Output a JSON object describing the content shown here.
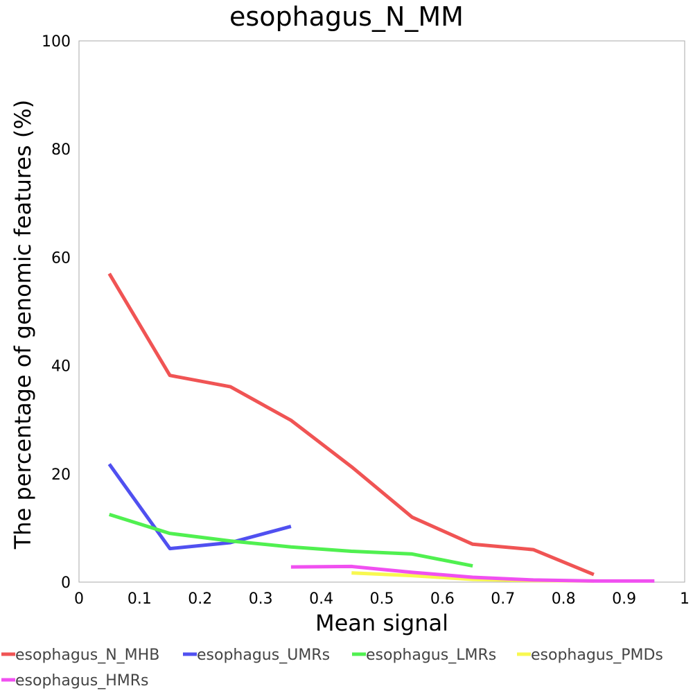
{
  "chart_data": {
    "type": "line",
    "title": "esophagus_N_MM",
    "xlabel": "Mean signal",
    "ylabel": "The percentage of genomic features (%)",
    "xlim": [
      0,
      1
    ],
    "ylim": [
      0,
      100
    ],
    "xticks": [
      "0",
      "0.1",
      "0.2",
      "0.3",
      "0.4",
      "0.5",
      "0.6",
      "0.7",
      "0.8",
      "0.9",
      "1"
    ],
    "yticks": [
      "0",
      "20",
      "40",
      "60",
      "80",
      "100"
    ],
    "grid": false,
    "legend_position": "bottom",
    "series": [
      {
        "name": "esophagus_N_MHB",
        "color": "#f05454",
        "x": [
          0.05,
          0.15,
          0.25,
          0.35,
          0.45,
          0.55,
          0.65,
          0.75,
          0.85
        ],
        "y": [
          57,
          38.2,
          36.1,
          29.9,
          21.3,
          12.0,
          7.0,
          6.0,
          1.4
        ]
      },
      {
        "name": "esophagus_UMRs",
        "color": "#5050f0",
        "x": [
          0.05,
          0.15,
          0.25,
          0.35
        ],
        "y": [
          21.8,
          6.2,
          7.3,
          10.3
        ]
      },
      {
        "name": "esophagus_LMRs",
        "color": "#50f050",
        "x": [
          0.05,
          0.15,
          0.25,
          0.35,
          0.45,
          0.55,
          0.65
        ],
        "y": [
          12.5,
          9.0,
          7.6,
          6.5,
          5.7,
          5.2,
          3.0
        ]
      },
      {
        "name": "esophagus_PMDs",
        "color": "#f8f850",
        "x": [
          0.45,
          0.55,
          0.65,
          0.75,
          0.85
        ],
        "y": [
          1.7,
          1.2,
          0.5,
          0.3,
          0.2
        ]
      },
      {
        "name": "esophagus_HMRs",
        "color": "#f050f0",
        "x": [
          0.35,
          0.45,
          0.55,
          0.65,
          0.75,
          0.85,
          0.95
        ],
        "y": [
          2.8,
          2.9,
          1.8,
          0.9,
          0.4,
          0.2,
          0.2
        ]
      }
    ]
  }
}
